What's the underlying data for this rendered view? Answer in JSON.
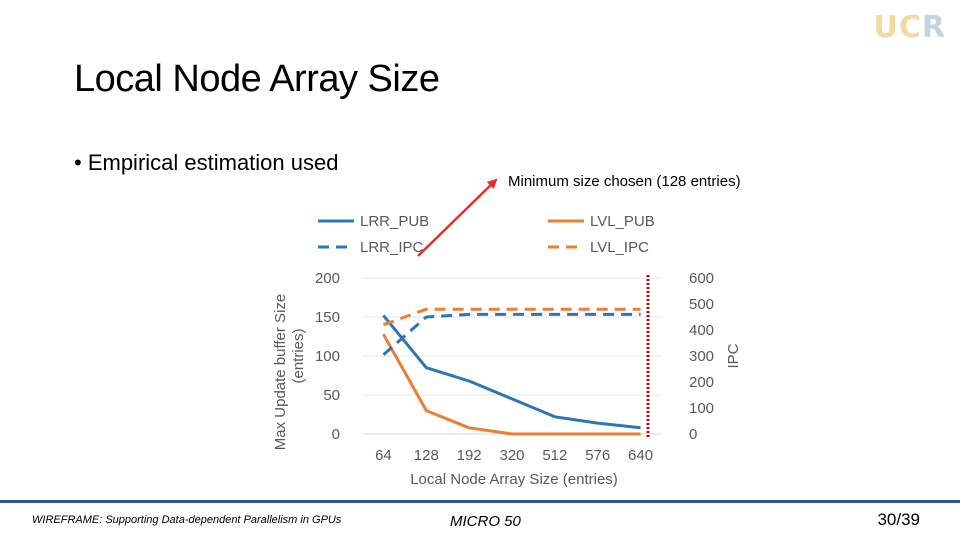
{
  "logo": {
    "uc": "UC",
    "r": "R"
  },
  "slide": {
    "title": "Local Node Array Size",
    "bullet": "• Empirical estimation used",
    "annotation": "Minimum size chosen (128 entries)"
  },
  "footer": {
    "left": "WIREFRAME: Supporting Data-dependent Parallelism in GPUs",
    "middle": "MICRO 50",
    "page": "30/39"
  },
  "colors": {
    "blue": "#2e75b6",
    "orange": "#ed7d31",
    "arrow": "#e0302a",
    "marker": "#c00000",
    "footer_line": "#2f5597"
  },
  "chart_data": {
    "type": "line",
    "x": [
      64,
      128,
      192,
      320,
      512,
      576,
      640
    ],
    "x_ticks": [
      "64",
      "128",
      "192",
      "320",
      "512",
      "576",
      "640"
    ],
    "xlabel": "Local Node Array Size (entries)",
    "ylabel_left_line1": "Max Update buffer Size",
    "ylabel_left_line2": "(entries)",
    "ylabel_right": "IPC",
    "ylim_left": [
      0,
      200
    ],
    "ylim_right": [
      0,
      600
    ],
    "yticks_left": [
      "0",
      "50",
      "100",
      "150",
      "200"
    ],
    "yticks_right": [
      "0",
      "100",
      "200",
      "300",
      "400",
      "500",
      "600"
    ],
    "series": [
      {
        "name": "LRR_PUB",
        "axis": "left",
        "style": "solid",
        "color": "#2e75b6",
        "values": [
          152,
          85,
          68,
          45,
          22,
          14,
          8
        ]
      },
      {
        "name": "LVL_PUB",
        "axis": "left",
        "style": "solid",
        "color": "#ed7d31",
        "values": [
          128,
          30,
          8,
          0,
          0,
          0,
          0
        ]
      },
      {
        "name": "LRR_IPC",
        "axis": "right",
        "style": "dashed",
        "color": "#2e75b6",
        "values": [
          305,
          450,
          460,
          460,
          460,
          460,
          460
        ]
      },
      {
        "name": "LVL_IPC",
        "axis": "right",
        "style": "dashed",
        "color": "#ed7d31",
        "values": [
          420,
          480,
          480,
          480,
          480,
          480,
          480
        ]
      }
    ],
    "legend_position": "top"
  }
}
